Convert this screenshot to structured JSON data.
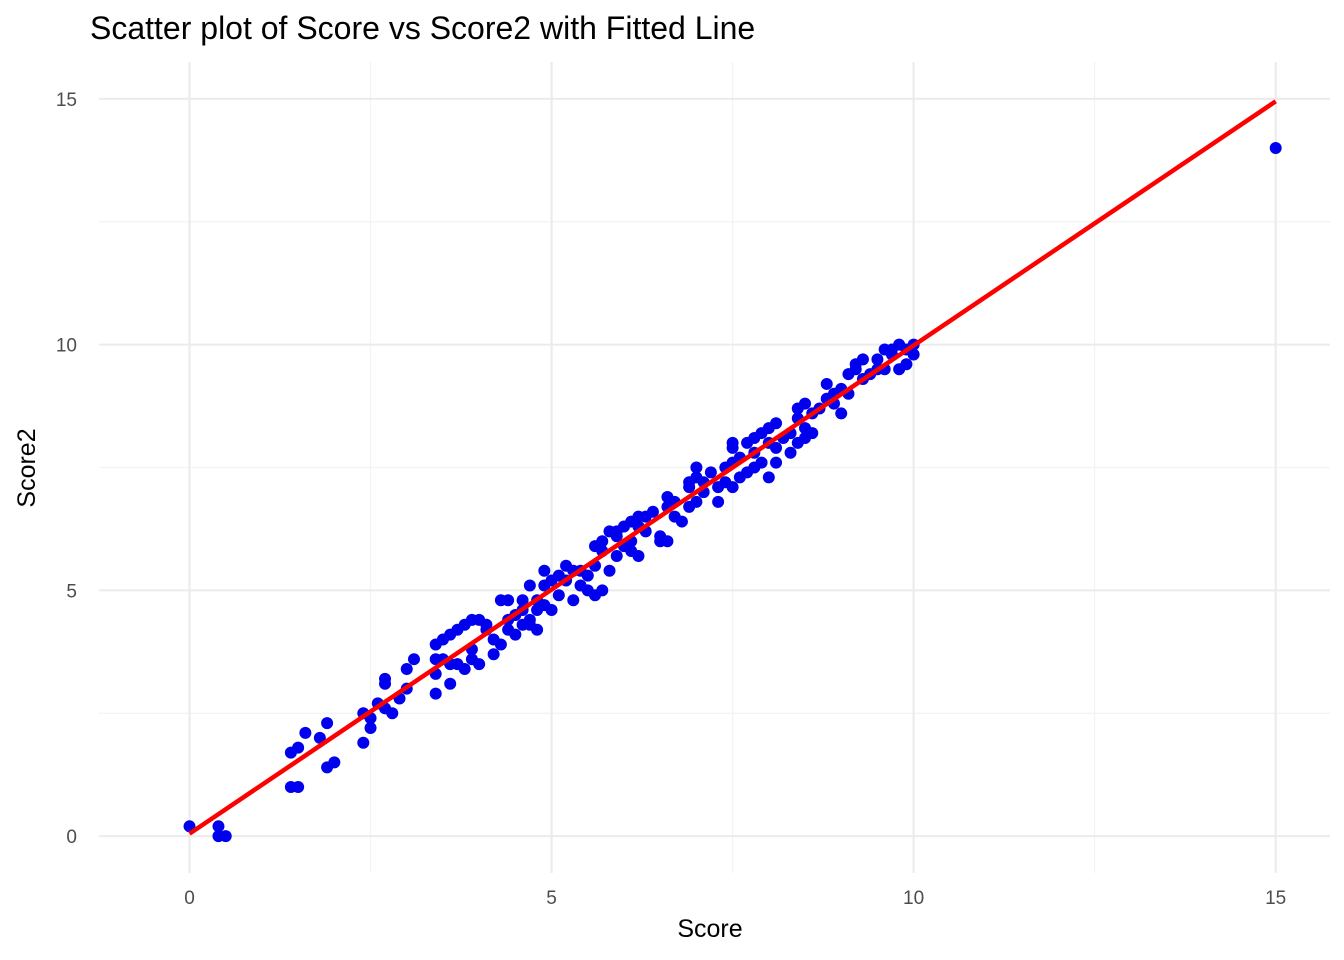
{
  "chart_data": {
    "type": "scatter",
    "title": "Scatter plot of Score vs Score2 with Fitted Line",
    "xlabel": "Score",
    "ylabel": "Score2",
    "xlim": [
      -1.25,
      15.75
    ],
    "ylim": [
      -0.75,
      15.75
    ],
    "x_ticks": [
      0,
      5,
      10,
      15
    ],
    "y_ticks": [
      0,
      5,
      10,
      15
    ],
    "x_tick_labels": [
      "0",
      "5",
      "10",
      "15"
    ],
    "y_tick_labels": [
      "0",
      "5",
      "10",
      "15"
    ],
    "grid": true,
    "legend": "none",
    "colors": {
      "points": "#0000ee",
      "fit_line": "#ff0000"
    },
    "fit_line": {
      "x": [
        0,
        15
      ],
      "y": [
        0.05,
        14.95
      ]
    },
    "points": [
      [
        0.0,
        0.2
      ],
      [
        0.4,
        0.2
      ],
      [
        0.4,
        0.0
      ],
      [
        0.5,
        0.0
      ],
      [
        1.4,
        1.0
      ],
      [
        1.5,
        1.0
      ],
      [
        1.4,
        1.7
      ],
      [
        1.5,
        1.8
      ],
      [
        1.6,
        2.1
      ],
      [
        1.8,
        2.0
      ],
      [
        1.9,
        2.3
      ],
      [
        1.9,
        1.4
      ],
      [
        2.0,
        1.5
      ],
      [
        2.4,
        2.5
      ],
      [
        2.4,
        1.9
      ],
      [
        2.5,
        2.4
      ],
      [
        2.5,
        2.2
      ],
      [
        2.6,
        2.7
      ],
      [
        2.7,
        2.6
      ],
      [
        2.7,
        3.1
      ],
      [
        2.7,
        3.2
      ],
      [
        2.8,
        2.5
      ],
      [
        2.9,
        2.8
      ],
      [
        3.0,
        3.0
      ],
      [
        3.1,
        3.6
      ],
      [
        3.0,
        3.4
      ],
      [
        3.4,
        3.3
      ],
      [
        3.4,
        2.9
      ],
      [
        3.4,
        3.6
      ],
      [
        3.4,
        3.9
      ],
      [
        3.5,
        4.0
      ],
      [
        3.5,
        3.6
      ],
      [
        3.6,
        4.1
      ],
      [
        3.6,
        3.5
      ],
      [
        3.6,
        3.1
      ],
      [
        3.7,
        4.2
      ],
      [
        3.7,
        3.5
      ],
      [
        3.8,
        4.3
      ],
      [
        3.8,
        3.4
      ],
      [
        3.9,
        4.4
      ],
      [
        3.9,
        3.8
      ],
      [
        3.9,
        3.6
      ],
      [
        4.0,
        4.4
      ],
      [
        4.0,
        3.5
      ],
      [
        4.1,
        4.3
      ],
      [
        4.1,
        4.2
      ],
      [
        4.2,
        4.0
      ],
      [
        4.2,
        3.7
      ],
      [
        4.3,
        3.9
      ],
      [
        4.3,
        4.8
      ],
      [
        4.4,
        4.4
      ],
      [
        4.4,
        4.8
      ],
      [
        4.4,
        4.2
      ],
      [
        4.5,
        4.5
      ],
      [
        4.5,
        4.1
      ],
      [
        4.6,
        4.6
      ],
      [
        4.6,
        4.8
      ],
      [
        4.6,
        4.3
      ],
      [
        4.7,
        4.4
      ],
      [
        4.7,
        5.1
      ],
      [
        4.7,
        4.3
      ],
      [
        4.8,
        4.2
      ],
      [
        4.8,
        4.6
      ],
      [
        4.8,
        4.8
      ],
      [
        4.9,
        4.7
      ],
      [
        4.9,
        5.4
      ],
      [
        4.9,
        5.1
      ],
      [
        5.0,
        4.6
      ],
      [
        5.0,
        5.2
      ],
      [
        5.1,
        5.3
      ],
      [
        5.1,
        4.9
      ],
      [
        5.2,
        5.5
      ],
      [
        5.2,
        5.2
      ],
      [
        5.3,
        4.8
      ],
      [
        5.3,
        5.4
      ],
      [
        5.4,
        5.1
      ],
      [
        5.4,
        5.4
      ],
      [
        5.5,
        5.0
      ],
      [
        5.5,
        5.3
      ],
      [
        5.6,
        5.5
      ],
      [
        5.6,
        4.9
      ],
      [
        5.6,
        5.9
      ],
      [
        5.7,
        6.0
      ],
      [
        5.7,
        5.8
      ],
      [
        5.7,
        5.0
      ],
      [
        5.8,
        5.4
      ],
      [
        5.8,
        6.2
      ],
      [
        5.9,
        5.7
      ],
      [
        5.9,
        6.1
      ],
      [
        5.9,
        6.2
      ],
      [
        6.0,
        6.3
      ],
      [
        6.0,
        5.9
      ],
      [
        6.1,
        6.4
      ],
      [
        6.1,
        6.0
      ],
      [
        6.1,
        5.8
      ],
      [
        6.2,
        6.5
      ],
      [
        6.2,
        6.3
      ],
      [
        6.2,
        5.7
      ],
      [
        6.3,
        6.2
      ],
      [
        6.3,
        6.5
      ],
      [
        6.4,
        6.6
      ],
      [
        6.5,
        6.1
      ],
      [
        6.5,
        6.0
      ],
      [
        6.6,
        6.9
      ],
      [
        6.6,
        6.7
      ],
      [
        6.6,
        6.0
      ],
      [
        6.7,
        6.8
      ],
      [
        6.7,
        6.5
      ],
      [
        6.8,
        6.4
      ],
      [
        6.9,
        7.1
      ],
      [
        6.9,
        6.7
      ],
      [
        6.9,
        7.2
      ],
      [
        7.0,
        6.8
      ],
      [
        7.0,
        7.3
      ],
      [
        7.0,
        7.5
      ],
      [
        7.1,
        7.2
      ],
      [
        7.1,
        7.0
      ],
      [
        7.2,
        7.4
      ],
      [
        7.3,
        6.8
      ],
      [
        7.3,
        7.1
      ],
      [
        7.4,
        7.2
      ],
      [
        7.4,
        7.5
      ],
      [
        7.5,
        7.6
      ],
      [
        7.5,
        7.1
      ],
      [
        7.5,
        7.9
      ],
      [
        7.5,
        8.0
      ],
      [
        7.6,
        7.7
      ],
      [
        7.6,
        7.3
      ],
      [
        7.7,
        8.0
      ],
      [
        7.7,
        7.4
      ],
      [
        7.8,
        7.8
      ],
      [
        7.8,
        8.1
      ],
      [
        7.8,
        7.5
      ],
      [
        7.9,
        7.6
      ],
      [
        7.9,
        8.2
      ],
      [
        8.0,
        8.3
      ],
      [
        8.0,
        8.0
      ],
      [
        8.0,
        7.3
      ],
      [
        8.1,
        8.4
      ],
      [
        8.1,
        7.9
      ],
      [
        8.1,
        7.6
      ],
      [
        8.2,
        8.1
      ],
      [
        8.3,
        8.2
      ],
      [
        8.3,
        7.8
      ],
      [
        8.4,
        8.5
      ],
      [
        8.4,
        8.0
      ],
      [
        8.4,
        8.7
      ],
      [
        8.5,
        8.8
      ],
      [
        8.5,
        8.3
      ],
      [
        8.5,
        8.1
      ],
      [
        8.6,
        8.6
      ],
      [
        8.6,
        8.2
      ],
      [
        8.7,
        8.7
      ],
      [
        8.8,
        9.2
      ],
      [
        8.8,
        8.9
      ],
      [
        8.9,
        9.0
      ],
      [
        8.9,
        8.8
      ],
      [
        9.0,
        9.1
      ],
      [
        9.0,
        8.6
      ],
      [
        9.1,
        9.4
      ],
      [
        9.1,
        9.0
      ],
      [
        9.2,
        9.5
      ],
      [
        9.2,
        9.6
      ],
      [
        9.3,
        9.3
      ],
      [
        9.3,
        9.7
      ],
      [
        9.4,
        9.4
      ],
      [
        9.5,
        9.7
      ],
      [
        9.5,
        9.5
      ],
      [
        9.6,
        9.9
      ],
      [
        9.7,
        9.8
      ],
      [
        9.7,
        9.9
      ],
      [
        9.8,
        10.0
      ],
      [
        9.8,
        9.5
      ],
      [
        9.9,
        9.9
      ],
      [
        9.9,
        9.6
      ],
      [
        10.0,
        10.0
      ],
      [
        10.0,
        9.8
      ],
      [
        9.6,
        9.5
      ],
      [
        15.0,
        14.0
      ]
    ]
  }
}
